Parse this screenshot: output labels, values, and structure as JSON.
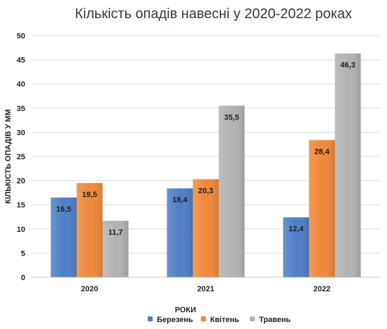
{
  "chart_data": {
    "type": "bar",
    "title": "Кількість опадів навесні у 2020-2022 роках",
    "xlabel": "РОКИ",
    "ylabel": "КІЛЬКІСТЬ ОПАДІВ У ММ",
    "categories": [
      "2020",
      "2021",
      "2022"
    ],
    "ylim": [
      0,
      50
    ],
    "yticks": [
      0,
      5,
      10,
      15,
      20,
      25,
      30,
      35,
      40,
      45,
      50
    ],
    "grid": true,
    "legend_position": "bottom",
    "series": [
      {
        "name": "Березень",
        "color": "#4f7fc7",
        "values": [
          16.5,
          18.4,
          12.4
        ],
        "labels": [
          "16,5",
          "18,4",
          "12,4"
        ]
      },
      {
        "name": "Квітень",
        "color": "#f0893a",
        "values": [
          19.5,
          20.3,
          28.4
        ],
        "labels": [
          "19,5",
          "20,3",
          "28,4"
        ]
      },
      {
        "name": "Травень",
        "color": "#b2b2b2",
        "values": [
          11.7,
          35.5,
          46.3
        ],
        "labels": [
          "11,7",
          "35,5",
          "46,3"
        ]
      }
    ]
  }
}
